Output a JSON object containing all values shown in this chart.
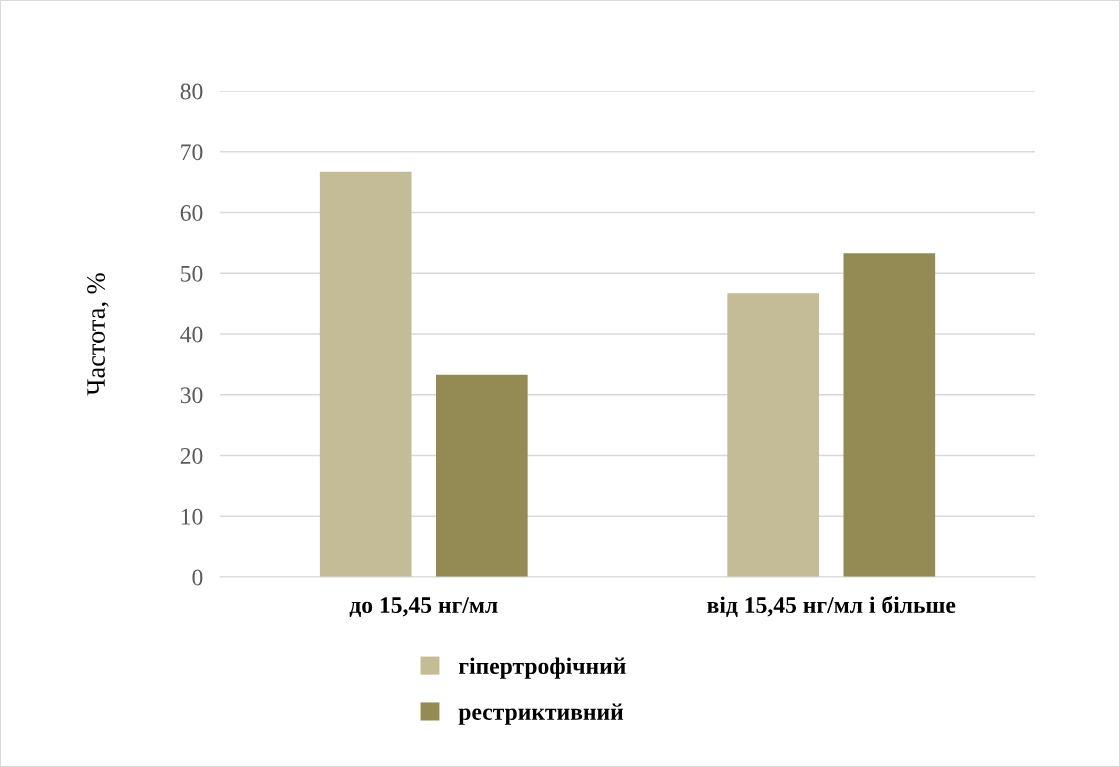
{
  "chart_data": {
    "type": "bar",
    "ylabel": "Частота, %",
    "categories": [
      "до 15,45 нг/мл",
      "від 15,45 нг/мл і більше"
    ],
    "series": [
      {
        "name": "гіпертрофічний",
        "color": "#c4bc96",
        "values": [
          66.7,
          46.7
        ]
      },
      {
        "name": "рестриктивний",
        "color": "#948a54",
        "values": [
          33.3,
          53.3
        ]
      }
    ],
    "ylim": [
      0,
      80
    ],
    "yticks": [
      0,
      10,
      20,
      30,
      40,
      50,
      60,
      70,
      80
    ],
    "grid": "y",
    "legend": "bottom"
  }
}
